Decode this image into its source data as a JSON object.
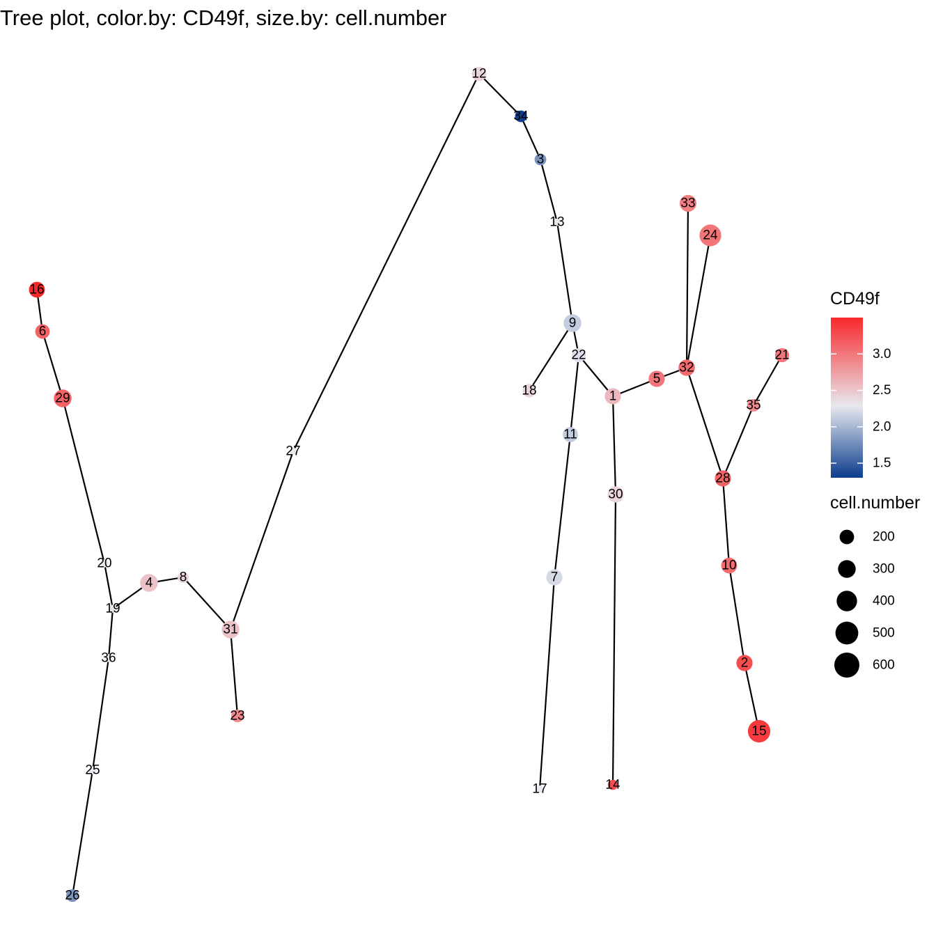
{
  "title": "Tree plot, color.by: CD49f, size.by: cell.number",
  "nodes": [
    {
      "id": "1",
      "value": 2.75,
      "cells": 250
    },
    {
      "id": "2",
      "value": 3.3,
      "cells": 250
    },
    {
      "id": "3",
      "value": 1.9,
      "cells": 130
    },
    {
      "id": "4",
      "value": 2.7,
      "cells": 300
    },
    {
      "id": "5",
      "value": 3.1,
      "cells": 250
    },
    {
      "id": "6",
      "value": 3.2,
      "cells": 200
    },
    {
      "id": "7",
      "value": 2.4,
      "cells": 250
    },
    {
      "id": "8",
      "value": 2.6,
      "cells": 120
    },
    {
      "id": "9",
      "value": 2.3,
      "cells": 300
    },
    {
      "id": "10",
      "value": 3.15,
      "cells": 240
    },
    {
      "id": "11",
      "value": 2.3,
      "cells": 220
    },
    {
      "id": "12",
      "value": 2.6,
      "cells": 200
    },
    {
      "id": "13",
      "value": 2.5,
      "cells": 50
    },
    {
      "id": "14",
      "value": 3.3,
      "cells": 100
    },
    {
      "id": "15",
      "value": 3.4,
      "cells": 480
    },
    {
      "id": "16",
      "value": 3.55,
      "cells": 240
    },
    {
      "id": "17",
      "value": 2.5,
      "cells": 50
    },
    {
      "id": "18",
      "value": 2.6,
      "cells": 170
    },
    {
      "id": "19",
      "value": 2.5,
      "cells": 60
    },
    {
      "id": "20",
      "value": 2.5,
      "cells": 60
    },
    {
      "id": "21",
      "value": 3.1,
      "cells": 190
    },
    {
      "id": "22",
      "value": 2.45,
      "cells": 190
    },
    {
      "id": "23",
      "value": 3.0,
      "cells": 150
    },
    {
      "id": "24",
      "value": 3.1,
      "cells": 450
    },
    {
      "id": "25",
      "value": 2.5,
      "cells": 60
    },
    {
      "id": "26",
      "value": 1.9,
      "cells": 150
    },
    {
      "id": "27",
      "value": 2.5,
      "cells": 50
    },
    {
      "id": "28",
      "value": 3.2,
      "cells": 250
    },
    {
      "id": "29",
      "value": 3.2,
      "cells": 300
    },
    {
      "id": "30",
      "value": 2.6,
      "cells": 250
    },
    {
      "id": "31",
      "value": 2.7,
      "cells": 300
    },
    {
      "id": "32",
      "value": 3.15,
      "cells": 260
    },
    {
      "id": "33",
      "value": 3.05,
      "cells": 270
    },
    {
      "id": "34",
      "value": 1.3,
      "cells": 130
    },
    {
      "id": "35",
      "value": 3.0,
      "cells": 150
    },
    {
      "id": "36",
      "value": 2.5,
      "cells": 60
    }
  ],
  "edges": [
    [
      "16",
      "6"
    ],
    [
      "6",
      "29"
    ],
    [
      "29",
      "20"
    ],
    [
      "20",
      "19"
    ],
    [
      "19",
      "4"
    ],
    [
      "4",
      "8"
    ],
    [
      "8",
      "31"
    ],
    [
      "31",
      "23"
    ],
    [
      "31",
      "27"
    ],
    [
      "27",
      "12"
    ],
    [
      "12",
      "34"
    ],
    [
      "34",
      "3"
    ],
    [
      "3",
      "13"
    ],
    [
      "13",
      "9"
    ],
    [
      "9",
      "18"
    ],
    [
      "9",
      "22"
    ],
    [
      "22",
      "11"
    ],
    [
      "11",
      "7"
    ],
    [
      "7",
      "17"
    ],
    [
      "22",
      "1"
    ],
    [
      "1",
      "30"
    ],
    [
      "30",
      "14"
    ],
    [
      "1",
      "5"
    ],
    [
      "5",
      "32"
    ],
    [
      "32",
      "33"
    ],
    [
      "32",
      "24"
    ],
    [
      "32",
      "28"
    ],
    [
      "28",
      "35"
    ],
    [
      "35",
      "21"
    ],
    [
      "28",
      "10"
    ],
    [
      "10",
      "2"
    ],
    [
      "2",
      "15"
    ],
    [
      "19",
      "36"
    ],
    [
      "36",
      "25"
    ],
    [
      "25",
      "26"
    ]
  ],
  "legend": {
    "color": {
      "title": "CD49f",
      "min": 1.3,
      "max": 3.5,
      "ticks": [
        "1.5",
        "2.0",
        "2.5",
        "3.0"
      ],
      "colors": {
        "low": "#0b3d8c",
        "mid": "#e8e8ee",
        "high": "#f8282a"
      }
    },
    "size": {
      "title": "cell.number",
      "ticks": [
        "200",
        "300",
        "400",
        "500",
        "600"
      ]
    }
  }
}
